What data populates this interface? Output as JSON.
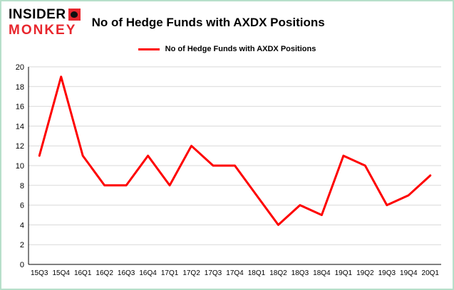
{
  "logo": {
    "line1": "INSIDER",
    "line2": "MONKEY"
  },
  "colors": {
    "line": "#fe0000",
    "logo_red": "#e8262d",
    "frame_border": "#b7dfca",
    "gridline": "#d9d9d9",
    "axis": "#000000"
  },
  "chart_data": {
    "type": "line",
    "title": "No of Hedge Funds with AXDX Positions",
    "legend": "No of Hedge Funds with AXDX Positions",
    "legend_position": "top",
    "grid": true,
    "categories": [
      "15Q3",
      "15Q4",
      "16Q1",
      "16Q2",
      "16Q3",
      "16Q4",
      "17Q1",
      "17Q2",
      "17Q3",
      "17Q4",
      "18Q1",
      "18Q2",
      "18Q3",
      "18Q4",
      "19Q1",
      "19Q2",
      "19Q3",
      "19Q4",
      "20Q1"
    ],
    "values": [
      11,
      19,
      11,
      8,
      8,
      11,
      8,
      12,
      10,
      10,
      7,
      4,
      6,
      5,
      11,
      10,
      6,
      7,
      9
    ],
    "xlabel": "",
    "ylabel": "",
    "ylim": [
      0,
      20
    ],
    "ytick_step": 2,
    "line_color": "#fe0000"
  }
}
